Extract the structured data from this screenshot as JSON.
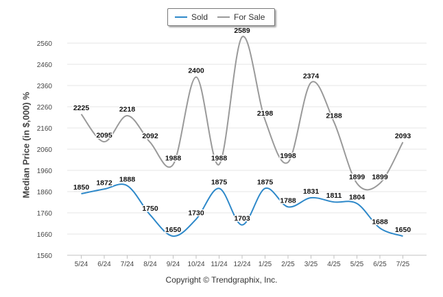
{
  "chart_data": {
    "type": "line",
    "categories": [
      "5/24",
      "6/24",
      "7/24",
      "8/24",
      "9/24",
      "10/24",
      "11/24",
      "12/24",
      "1/25",
      "2/25",
      "3/25",
      "4/25",
      "5/25",
      "6/25",
      "7/25"
    ],
    "series": [
      {
        "name": "Sold",
        "color": "#2d88c9",
        "values": [
          1850,
          1872,
          1888,
          1750,
          1650,
          1730,
          1875,
          1703,
          1875,
          1788,
          1831,
          1811,
          1804,
          1688,
          1650
        ]
      },
      {
        "name": "For Sale",
        "color": "#999999",
        "values": [
          2225,
          2095,
          2218,
          2092,
          1988,
          2400,
          1988,
          2589,
          2198,
          1998,
          2374,
          2188,
          1899,
          1899,
          2093
        ]
      }
    ],
    "ylabel": "Median Price (in $,000) %",
    "ylim": [
      1560,
      2610
    ],
    "yticks": [
      1560,
      1660,
      1760,
      1860,
      1960,
      2060,
      2160,
      2260,
      2360,
      2460,
      2560
    ],
    "grid": true,
    "legend_position": "top-center"
  },
  "footer": {
    "copyright": "Copyright © Trendgraphix, Inc."
  }
}
